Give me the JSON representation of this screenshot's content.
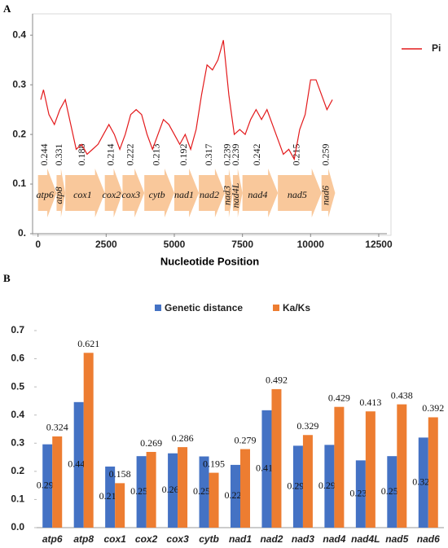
{
  "chart_data": [
    {
      "type": "line",
      "label": "A",
      "x_label": "Nucleotide Position",
      "xlim": [
        -200,
        12800
      ],
      "ylim": [
        0,
        0.42
      ],
      "xticks": [
        0,
        2500,
        5000,
        7500,
        10000,
        12500
      ],
      "yticks": [
        {
          "value": 0,
          "label": "0."
        },
        0.1,
        0.2,
        0.3,
        0.4
      ],
      "legend": "right",
      "series": [
        {
          "name": "Pi",
          "color": "#e31a1c",
          "x": [
            100,
            200,
            400,
            600,
            800,
            1000,
            1200,
            1400,
            1600,
            1800,
            2000,
            2200,
            2400,
            2600,
            2800,
            3000,
            3200,
            3400,
            3600,
            3800,
            4000,
            4200,
            4400,
            4600,
            4800,
            5000,
            5200,
            5400,
            5600,
            5800,
            6000,
            6200,
            6400,
            6600,
            6800,
            7000,
            7200,
            7400,
            7600,
            7800,
            8000,
            8200,
            8400,
            8600,
            8800,
            9000,
            9200,
            9400,
            9600,
            9800,
            10000,
            10200,
            10400,
            10600,
            10800
          ],
          "values": [
            0.27,
            0.29,
            0.24,
            0.22,
            0.25,
            0.27,
            0.22,
            0.17,
            0.18,
            0.16,
            0.17,
            0.18,
            0.2,
            0.22,
            0.2,
            0.17,
            0.2,
            0.24,
            0.25,
            0.24,
            0.2,
            0.17,
            0.2,
            0.23,
            0.22,
            0.2,
            0.18,
            0.2,
            0.17,
            0.21,
            0.28,
            0.34,
            0.33,
            0.35,
            0.39,
            0.28,
            0.2,
            0.21,
            0.2,
            0.23,
            0.25,
            0.23,
            0.25,
            0.22,
            0.19,
            0.16,
            0.17,
            0.15,
            0.21,
            0.24,
            0.31,
            0.31,
            0.28,
            0.25,
            0.27
          ]
        }
      ],
      "gene_color": "#f9c89b",
      "genes": [
        {
          "name": "atp6",
          "start": 0,
          "end": 680,
          "pi": 0.244
        },
        {
          "name": "atp8",
          "start": 680,
          "end": 1000,
          "pi": 0.331
        },
        {
          "name": "cox1",
          "start": 1000,
          "end": 2450,
          "pi": 0.188
        },
        {
          "name": "cox2",
          "start": 2450,
          "end": 3100,
          "pi": 0.214
        },
        {
          "name": "cox3",
          "start": 3100,
          "end": 3900,
          "pi": 0.222
        },
        {
          "name": "cytb",
          "start": 3900,
          "end": 5000,
          "pi": 0.213
        },
        {
          "name": "nad1",
          "start": 5000,
          "end": 5900,
          "pi": 0.192
        },
        {
          "name": "nad2",
          "start": 5900,
          "end": 6850,
          "pi": 0.317
        },
        {
          "name": "nad3",
          "start": 6850,
          "end": 7150,
          "pi": 0.239
        },
        {
          "name": "nad4L",
          "start": 7150,
          "end": 7500,
          "pi": 0.239
        },
        {
          "name": "nad4",
          "start": 7500,
          "end": 8800,
          "pi": 0.242
        },
        {
          "name": "nad5",
          "start": 8800,
          "end": 10400,
          "pi": 0.215
        },
        {
          "name": "nad6",
          "start": 10400,
          "end": 10900,
          "pi": 0.259
        }
      ]
    },
    {
      "type": "bar",
      "label": "B",
      "legend": "top",
      "categories": [
        "atp6",
        "atp8",
        "cox1",
        "cox2",
        "cox3",
        "cytb",
        "nad1",
        "nad2",
        "nad3",
        "nad4",
        "nad4L",
        "nad5",
        "nad6"
      ],
      "ylim": [
        0,
        0.7
      ],
      "yticks": [
        {
          "value": 0,
          "label": "0.0"
        },
        0.1,
        0.2,
        0.3,
        0.4,
        0.5,
        0.6,
        0.7
      ],
      "series": [
        {
          "name": "Genetic distance",
          "color": "#4472c4",
          "values": [
            0.296,
            0.446,
            0.217,
            0.254,
            0.264,
            0.253,
            0.223,
            0.417,
            0.291,
            0.294,
            0.239,
            0.254,
            0.32
          ],
          "value_labels": [
            "0.296",
            "0.446",
            "0.217",
            "0.254",
            "0.264",
            "0.253",
            "0.223",
            "0.417",
            "0.291",
            "0.294",
            "0.239",
            "0.254",
            "0.320"
          ]
        },
        {
          "name": "Ka/Ks",
          "color": "#ed7d31",
          "values": [
            0.324,
            0.621,
            0.158,
            0.269,
            0.286,
            0.195,
            0.279,
            0.492,
            0.329,
            0.429,
            0.413,
            0.438,
            0.392
          ],
          "value_labels": [
            "0.324",
            "0.621",
            "0.158",
            "0.269",
            "0.286",
            "0.195",
            "0.279",
            "0.492",
            "0.329",
            "0.429",
            "0.413",
            "0.438",
            "0.392"
          ]
        }
      ]
    }
  ]
}
